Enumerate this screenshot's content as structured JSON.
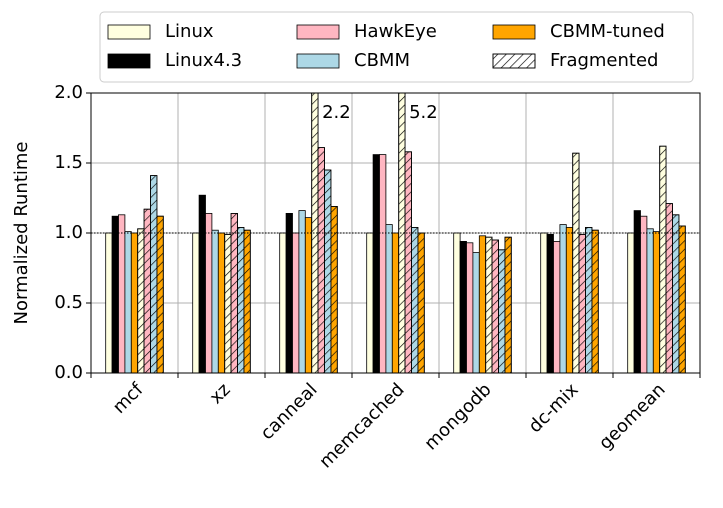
{
  "chart_data": {
    "type": "bar",
    "y_label": "Normalized Runtime",
    "categories": [
      "mcf",
      "xz",
      "canneal",
      "memcached",
      "mongodb",
      "dc-mix",
      "geomean"
    ],
    "series": [
      {
        "name": "Linux",
        "color": "#ffffe0",
        "values": [
          1.0,
          1.0,
          1.0,
          1.0,
          1.0,
          1.0,
          1.0
        ],
        "fragmented_values": [
          1.03,
          0.99,
          2.2,
          5.2,
          0.97,
          1.57,
          1.62
        ],
        "fragmented_value_labels": [
          null,
          null,
          "2.2",
          "5.2",
          null,
          null,
          null
        ]
      },
      {
        "name": "Linux4.3",
        "color": "#000000",
        "values": [
          1.12,
          1.27,
          1.14,
          1.56,
          0.94,
          0.99,
          1.16
        ]
      },
      {
        "name": "HawkEye",
        "color": "#ffb6c1",
        "values": [
          1.13,
          1.14,
          1.0,
          1.56,
          0.93,
          0.94,
          1.12
        ],
        "fragmented_values": [
          1.17,
          1.14,
          1.61,
          1.58,
          0.95,
          0.99,
          1.21
        ]
      },
      {
        "name": "CBMM",
        "color": "#add8e6",
        "values": [
          1.01,
          1.02,
          1.16,
          1.06,
          0.86,
          1.06,
          1.03
        ],
        "fragmented_values": [
          1.41,
          1.04,
          1.45,
          1.04,
          0.88,
          1.04,
          1.13
        ]
      },
      {
        "name": "CBMM-tuned",
        "color": "#ffa500",
        "values": [
          1.0,
          1.0,
          1.11,
          1.0,
          0.98,
          1.04,
          1.01
        ],
        "fragmented_values": [
          1.12,
          1.02,
          1.19,
          1.0,
          0.97,
          1.02,
          1.05
        ]
      }
    ],
    "fragmented_label": "Fragmented",
    "reference_line": 1.0,
    "ylim": [
      0,
      2.0
    ],
    "yticks": [
      {
        "value": 0,
        "label": "0.0"
      },
      {
        "value": 0.5,
        "label": "0.5"
      },
      {
        "value": 1.0,
        "label": "1.0"
      },
      {
        "value": 1.5,
        "label": "1.5"
      },
      {
        "value": 2.0,
        "label": "2.0"
      }
    ],
    "grid": true,
    "legend_position": "top"
  }
}
